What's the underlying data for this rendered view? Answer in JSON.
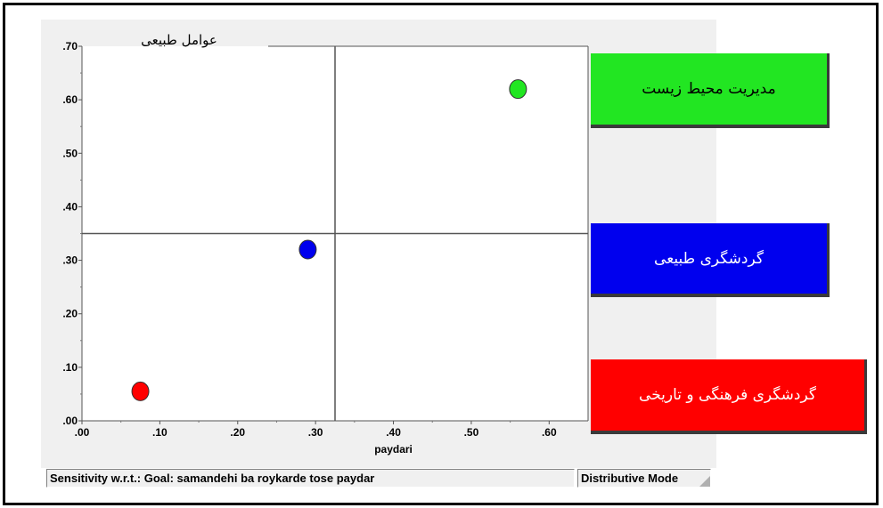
{
  "chart_data": {
    "type": "scatter",
    "title": "عوامل طبیعی",
    "xlabel": "paydari",
    "ylabel": "",
    "xlim": [
      0,
      0.65
    ],
    "ylim": [
      0,
      0.7
    ],
    "x_ticks": [
      ".00",
      ".10",
      ".20",
      ".30",
      ".40",
      ".50",
      ".60"
    ],
    "y_ticks": [
      ".00",
      ".10",
      ".20",
      ".30",
      ".40",
      ".50",
      ".60",
      ".70"
    ],
    "crosshair": {
      "x": 0.325,
      "y": 0.35
    },
    "grid": false,
    "legend_placement": "right",
    "series": [
      {
        "name": "مدیریت محیط زیست",
        "x": 0.56,
        "y": 0.62,
        "color": "#22e622"
      },
      {
        "name": "گردشگری طبیعی",
        "x": 0.29,
        "y": 0.32,
        "color": "#0000ee"
      },
      {
        "name": "گردشگری فرهنگی و تاریخی",
        "x": 0.075,
        "y": 0.055,
        "color": "#ff0000"
      }
    ]
  },
  "status_bar": {
    "sensitivity_text": "Sensitivity w.r.t.: Goal: samandehi ba roykarde tose paydar",
    "mode_text": "Distributive Mode"
  }
}
